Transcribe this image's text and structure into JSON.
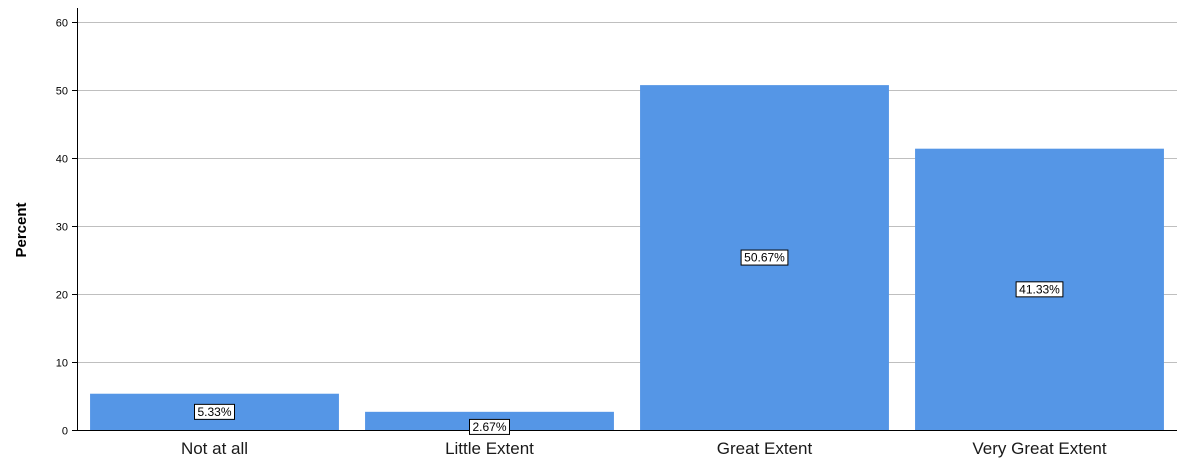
{
  "chart_data": {
    "type": "bar",
    "categories": [
      "Not at all",
      "Little Extent",
      "Great Extent",
      "Very Great Extent"
    ],
    "values": [
      5.33,
      2.67,
      50.67,
      41.33
    ],
    "data_labels": [
      "5.33%",
      "2.67%",
      "50.67%",
      "41.33%"
    ],
    "title": "",
    "xlabel": "",
    "ylabel": "Percent",
    "ylim": [
      0,
      62
    ],
    "yticks": [
      0,
      10,
      20,
      30,
      40,
      50,
      60
    ],
    "grid": true,
    "colors": {
      "bar": "#5596e6",
      "grid": "#bfbfbf",
      "axis": "#000000"
    }
  }
}
